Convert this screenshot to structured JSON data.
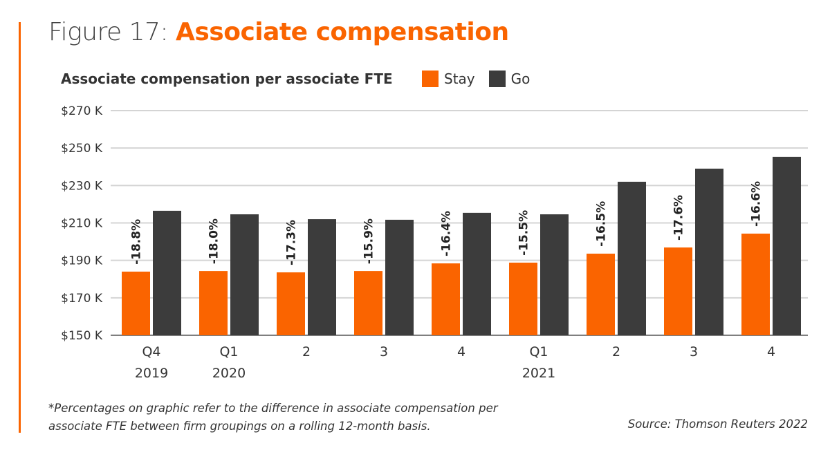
{
  "figure": {
    "prefix": "Figure 17: ",
    "title": "Associate compensation"
  },
  "footnote": [
    "*Percentages on graphic refer to the difference in associate compensation per",
    "associate FTE between firm groupings on a rolling 12-month basis."
  ],
  "source": "Source: Thomson Reuters 2022",
  "chart_data": {
    "type": "bar",
    "title": "Associate compensation per associate FTE",
    "categories": [
      [
        "Q4",
        "2019"
      ],
      [
        "Q1",
        "2020"
      ],
      [
        "2",
        ""
      ],
      [
        "3",
        ""
      ],
      [
        "4",
        ""
      ],
      [
        "Q1",
        "2021"
      ],
      [
        "2",
        ""
      ],
      [
        "3",
        ""
      ],
      [
        "4",
        ""
      ]
    ],
    "series": [
      {
        "name": "Stay",
        "color": "#fa6400",
        "values": [
          184,
          184.3,
          183.6,
          184.3,
          188.4,
          188.8,
          193.6,
          196.9,
          204.3
        ]
      },
      {
        "name": "Go",
        "color": "#3c3c3c",
        "values": [
          216.5,
          214.6,
          212,
          211.7,
          215.4,
          214.6,
          232,
          239,
          245.3
        ]
      }
    ],
    "data_labels": [
      "-18.8%",
      "-18.0%",
      "-17.3%",
      "-15.9%",
      "-16.4%",
      "-15.5%",
      "-16.5%",
      "-17.6%",
      "-16.6%"
    ],
    "yticks": [
      150,
      170,
      190,
      210,
      230,
      250,
      270
    ],
    "ytick_labels": [
      "$150 K",
      "$170 K",
      "$190 K",
      "$210 K",
      "$230 K",
      "$250 K",
      "$270 K"
    ],
    "ylim": [
      150,
      270
    ],
    "unit": "K USD",
    "grid": true,
    "legend_position": "top"
  }
}
